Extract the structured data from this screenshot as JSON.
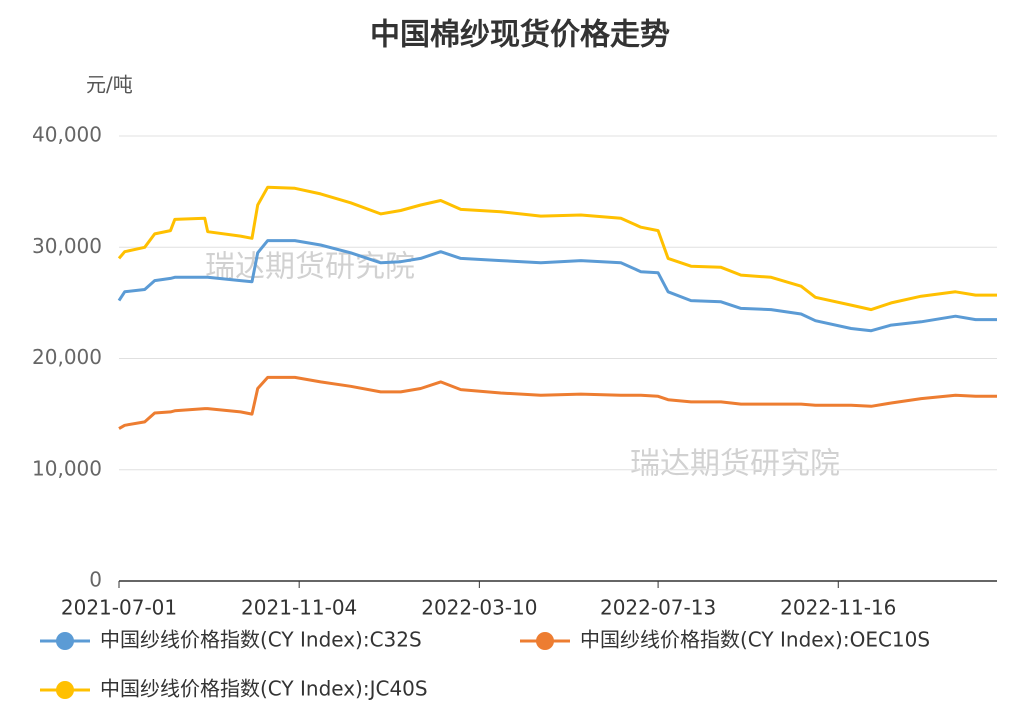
{
  "chart_data": {
    "type": "line",
    "title": "中国棉纱现货价格走势",
    "y_unit": "元/吨",
    "watermarks": [
      "瑞达期货研究院",
      "瑞达期货研究院"
    ],
    "x": [
      "2021-07-01",
      "2021-07-05",
      "2021-07-19",
      "2021-07-26",
      "2021-08-06",
      "2021-08-09",
      "2021-08-30",
      "2021-09-01",
      "2021-09-24",
      "2021-10-02",
      "2021-10-06",
      "2021-10-13",
      "2021-11-01",
      "2021-11-19",
      "2021-12-10",
      "2021-12-31",
      "2022-01-14",
      "2022-01-28",
      "2022-02-11",
      "2022-02-25",
      "2022-03-25",
      "2022-04-22",
      "2022-05-20",
      "2022-06-17",
      "2022-07-01",
      "2022-07-13",
      "2022-07-20",
      "2022-08-05",
      "2022-08-26",
      "2022-09-09",
      "2022-09-30",
      "2022-10-21",
      "2022-10-31",
      "2022-11-25",
      "2022-12-09",
      "2022-12-23",
      "2023-01-13",
      "2023-02-06",
      "2023-02-20",
      "2023-03-07"
    ],
    "series": [
      {
        "name": "中国纱线价格指数(CY Index):C32S",
        "color": "#5b9bd5",
        "values": [
          25200,
          26000,
          26200,
          27000,
          27200,
          27300,
          27300,
          27300,
          27000,
          26900,
          29500,
          30600,
          30600,
          30200,
          29500,
          28600,
          28700,
          29000,
          29600,
          29000,
          28800,
          28600,
          28800,
          28600,
          27800,
          27700,
          26000,
          25200,
          25100,
          24500,
          24400,
          24000,
          23400,
          22700,
          22500,
          23000,
          23300,
          23800,
          23500,
          23500
        ]
      },
      {
        "name": "中国纱线价格指数(CY Index):OEC10S",
        "color": "#ed7d31",
        "values": [
          13700,
          14000,
          14300,
          15100,
          15200,
          15300,
          15500,
          15500,
          15200,
          15000,
          17300,
          18300,
          18300,
          17900,
          17500,
          17000,
          17000,
          17300,
          17900,
          17200,
          16900,
          16700,
          16800,
          16700,
          16700,
          16600,
          16300,
          16100,
          16100,
          15900,
          15900,
          15900,
          15800,
          15800,
          15700,
          16000,
          16400,
          16700,
          16600,
          16600
        ]
      },
      {
        "name": "中国纱线价格指数(CY Index):JC40S",
        "color": "#ffc000",
        "values": [
          29000,
          29600,
          30000,
          31200,
          31500,
          32500,
          32600,
          31400,
          31000,
          30800,
          33800,
          35400,
          35300,
          34800,
          34000,
          33000,
          33300,
          33800,
          34200,
          33400,
          33200,
          32800,
          32900,
          32600,
          31800,
          31500,
          29000,
          28300,
          28200,
          27500,
          27300,
          26500,
          25500,
          24800,
          24400,
          25000,
          25600,
          26000,
          25700,
          25700
        ]
      }
    ],
    "xlim": [
      "2021-07-01",
      "2023-03-07"
    ],
    "xticks": [
      "2021-07-01",
      "2021-11-04",
      "2022-03-10",
      "2022-07-13",
      "2022-11-16"
    ],
    "ylim": [
      0,
      40000
    ],
    "yticks": [
      0,
      {
        "value": 10000,
        "label": "10,000"
      },
      {
        "value": 20000,
        "label": "20,000"
      },
      {
        "value": 30000,
        "label": "30,000"
      },
      {
        "value": 40000,
        "label": "40,000"
      }
    ],
    "grid": true
  }
}
